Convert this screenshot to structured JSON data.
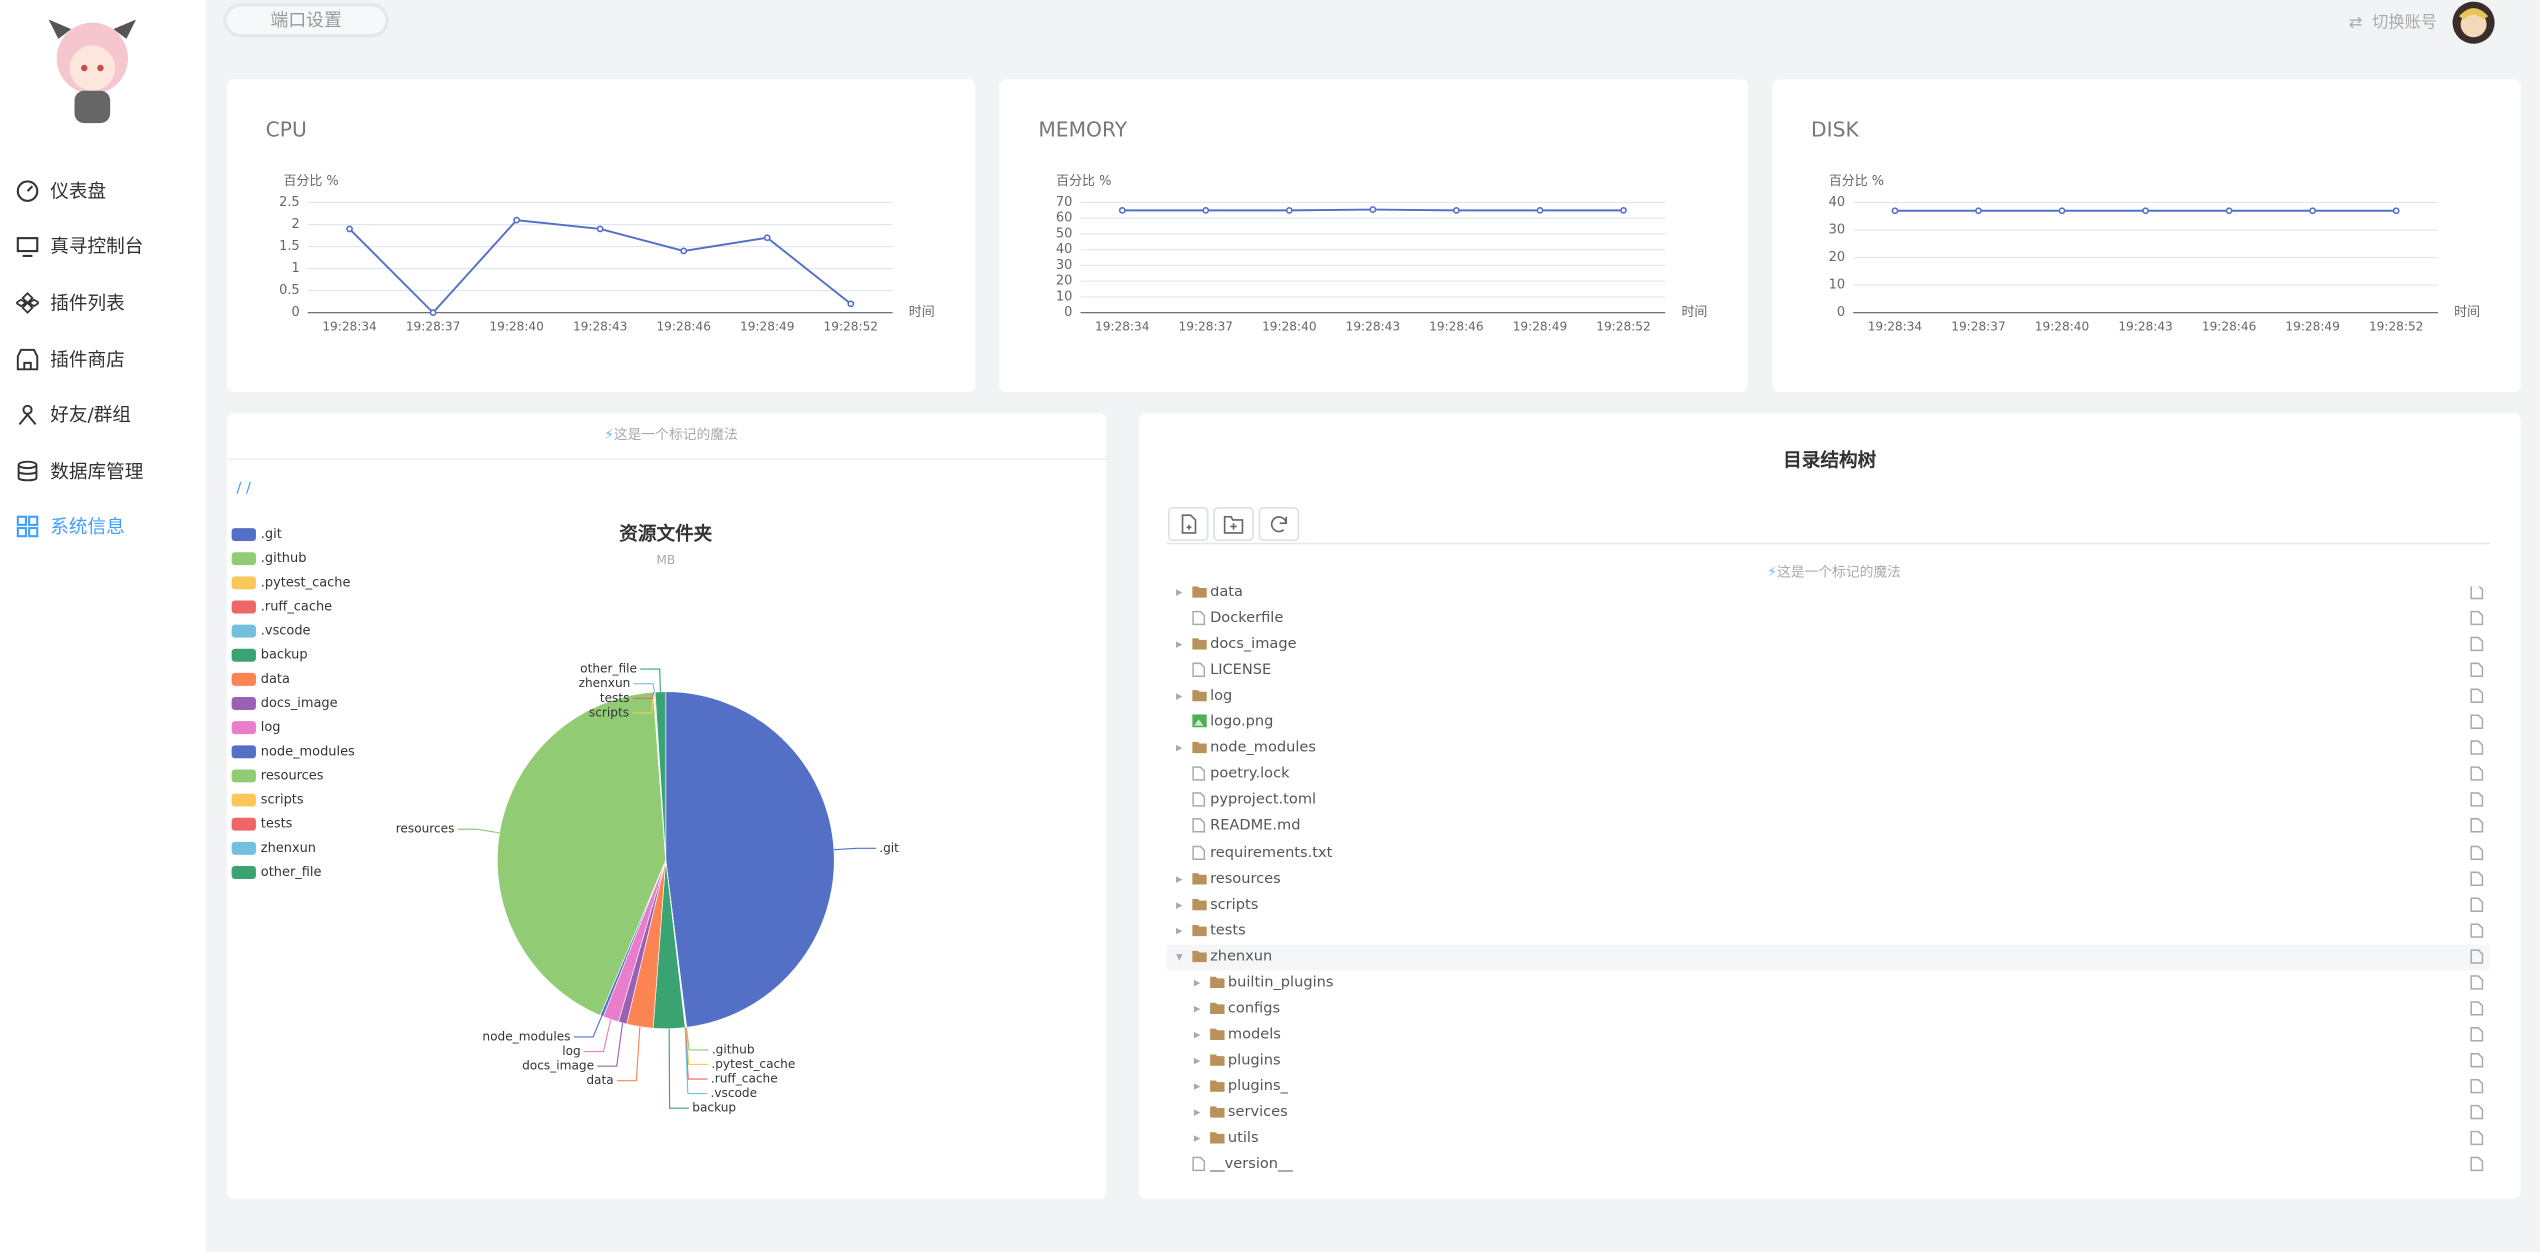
{
  "sidebar": {
    "menu": [
      "仪表盘",
      "真寻控制台",
      "插件列表",
      "插件商店",
      "好友/群组",
      "数据库管理",
      "系统信息"
    ],
    "active": 6
  },
  "header": {
    "tab": "端口设置",
    "switch_account": "切换账号"
  },
  "chart_data": [
    {
      "type": "line",
      "title": "CPU",
      "y_label": "百分比 %",
      "x_label": "时间",
      "categories": [
        "19:28:34",
        "19:28:37",
        "19:28:40",
        "19:28:43",
        "19:28:46",
        "19:28:49",
        "19:28:52"
      ],
      "values": [
        1.9,
        0,
        2.1,
        1.9,
        1.4,
        1.7,
        0.2
      ],
      "color": "#5470c6",
      "ylim": [
        0,
        2.5
      ],
      "yticks": [
        0,
        0.5,
        1,
        1.5,
        2,
        2.5
      ],
      "grid": true
    },
    {
      "type": "line",
      "title": "MEMORY",
      "y_label": "百分比 %",
      "x_label": "时间",
      "categories": [
        "19:28:34",
        "19:28:37",
        "19:28:40",
        "19:28:43",
        "19:28:46",
        "19:28:49",
        "19:28:52"
      ],
      "values": [
        65,
        65,
        65,
        65.5,
        65,
        65,
        65
      ],
      "color": "#5470c6",
      "ylim": [
        0,
        70
      ],
      "yticks": [
        0,
        10,
        20,
        30,
        40,
        50,
        60,
        70
      ],
      "grid": true
    },
    {
      "type": "line",
      "title": "DISK",
      "y_label": "百分比 %",
      "x_label": "时间",
      "categories": [
        "19:28:34",
        "19:28:37",
        "19:28:40",
        "19:28:43",
        "19:28:46",
        "19:28:49",
        "19:28:52"
      ],
      "values": [
        37,
        37,
        37,
        37,
        37,
        37,
        37
      ],
      "color": "#5470c6",
      "ylim": [
        0,
        40
      ],
      "yticks": [
        0,
        10,
        20,
        30,
        40
      ],
      "grid": true
    },
    {
      "type": "pie",
      "title": "资源文件夹",
      "subtitle": "MB",
      "categories": [
        ".git",
        ".github",
        ".pytest_cache",
        ".ruff_cache",
        ".vscode",
        "backup",
        "data",
        "docs_image",
        "log",
        "node_modules",
        "resources",
        "scripts",
        "tests",
        "zhenxun",
        "other_file"
      ],
      "values": [
        475,
        0.5,
        0.3,
        0.5,
        0.1,
        30,
        25,
        8,
        15,
        3,
        420,
        0.2,
        0.5,
        1,
        10
      ],
      "colors": [
        "#5470c6",
        "#91cc75",
        "#fac858",
        "#ee6666",
        "#73c0de",
        "#3ba272",
        "#fc8452",
        "#9a60b4",
        "#ea7ccc",
        "#5470c6",
        "#91cc75",
        "#fac858",
        "#ee6666",
        "#73c0de",
        "#3ba272"
      ]
    }
  ],
  "pie_panel": {
    "notice": "这是一个标记的魔法",
    "breadcrumb": "/ /"
  },
  "tree_panel": {
    "title": "目录结构树",
    "notice": "这是一个标记的魔法",
    "nodes": [
      {
        "label": "data",
        "icon": "folder"
      },
      {
        "label": "Dockerfile",
        "icon": "file"
      },
      {
        "label": "docs_image",
        "icon": "folder"
      },
      {
        "label": "LICENSE",
        "icon": "file"
      },
      {
        "label": "log",
        "icon": "folder"
      },
      {
        "label": "logo.png",
        "icon": "image"
      },
      {
        "label": "node_modules",
        "icon": "folder"
      },
      {
        "label": "poetry.lock",
        "icon": "file"
      },
      {
        "label": "pyproject.toml",
        "icon": "file"
      },
      {
        "label": "README.md",
        "icon": "file"
      },
      {
        "label": "requirements.txt",
        "icon": "file"
      },
      {
        "label": "resources",
        "icon": "folder"
      },
      {
        "label": "scripts",
        "icon": "folder"
      },
      {
        "label": "tests",
        "icon": "folder"
      },
      {
        "label": "zhenxun",
        "icon": "folder",
        "children": [
          {
            "label": "builtin_plugins",
            "icon": "folder"
          },
          {
            "label": "configs",
            "icon": "folder"
          },
          {
            "label": "models",
            "icon": "folder"
          },
          {
            "label": "plugins",
            "icon": "folder"
          },
          {
            "label": "plugins_",
            "icon": "folder"
          },
          {
            "label": "services",
            "icon": "folder"
          },
          {
            "label": "utils",
            "icon": "folder"
          }
        ]
      },
      {
        "label": "__version__",
        "icon": "file"
      }
    ]
  }
}
